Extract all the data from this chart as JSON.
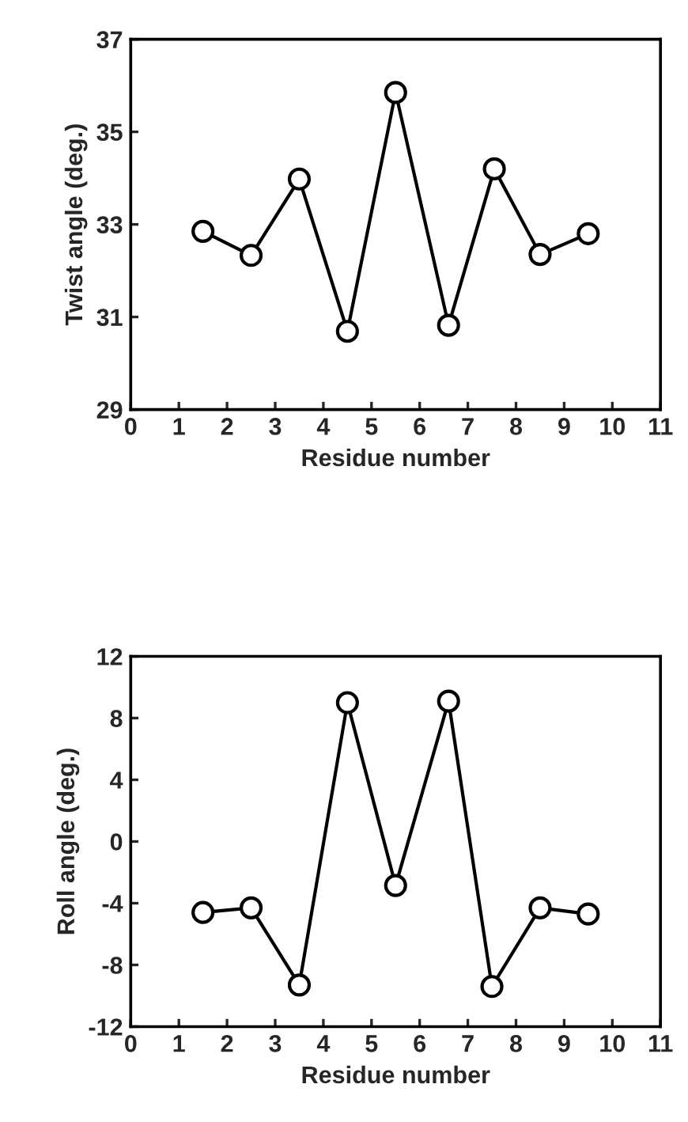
{
  "chart_data": [
    {
      "type": "line",
      "xlabel": "Residue number",
      "ylabel": "Twist angle (deg.)",
      "xlim": [
        0,
        11
      ],
      "xticks": [
        0,
        1,
        2,
        3,
        4,
        5,
        6,
        7,
        8,
        9,
        10,
        11
      ],
      "ylim": [
        29,
        37
      ],
      "yticks": [
        29,
        31,
        33,
        35,
        37
      ],
      "marker": "circle",
      "line_style": "solid",
      "grid": false,
      "legend": false,
      "series": [
        {
          "color": "#000000",
          "x": [
            1.5,
            2.5,
            3.5,
            4.5,
            5.5,
            6.6,
            7.55,
            8.5,
            9.5
          ],
          "values": [
            32.85,
            32.33,
            33.98,
            30.69,
            35.85,
            30.82,
            34.2,
            32.35,
            32.8
          ]
        }
      ]
    },
    {
      "type": "line",
      "xlabel": "Residue number",
      "ylabel": "Roll angle (deg.)",
      "xlim": [
        0,
        11
      ],
      "xticks": [
        0,
        1,
        2,
        3,
        4,
        5,
        6,
        7,
        8,
        9,
        10,
        11
      ],
      "ylim": [
        -12,
        12
      ],
      "yticks": [
        -12,
        -8,
        -4,
        0,
        4,
        8,
        12
      ],
      "marker": "circle",
      "line_style": "solid",
      "grid": false,
      "legend": false,
      "series": [
        {
          "color": "#000000",
          "x": [
            1.5,
            2.5,
            3.5,
            4.5,
            5.5,
            6.6,
            7.5,
            8.5,
            9.5
          ],
          "values": [
            -4.6,
            -4.3,
            -9.3,
            9.0,
            -2.85,
            9.1,
            -9.4,
            -4.3,
            -4.7
          ]
        }
      ]
    }
  ]
}
